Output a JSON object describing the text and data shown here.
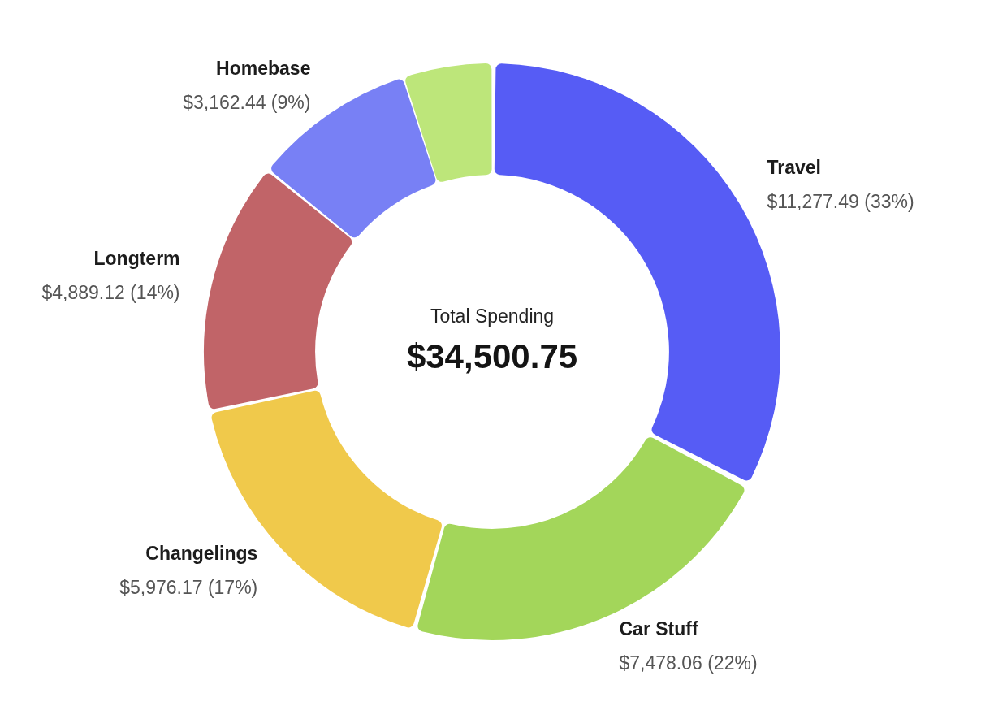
{
  "chart_data": {
    "type": "donut",
    "categories": [
      "Travel",
      "Car Stuff",
      "Changelings",
      "Longterm",
      "Homebase",
      null
    ],
    "values": [
      11277.49,
      7478.06,
      5976.17,
      4889.12,
      3162.44,
      1717.47
    ],
    "colors": [
      "#565cf5",
      "#a3d65a",
      "#f0c94b",
      "#c16468",
      "#7880f5",
      "#bde67a"
    ],
    "value_labels": [
      "$11,277.49 (33%)",
      "$7,478.06 (22%)",
      "$5,976.17 (17%)",
      "$4,889.12 (14%)",
      "$3,162.44 (9%)",
      null
    ],
    "annotations": [
      "Total Spending",
      "$34,500.75"
    ]
  }
}
